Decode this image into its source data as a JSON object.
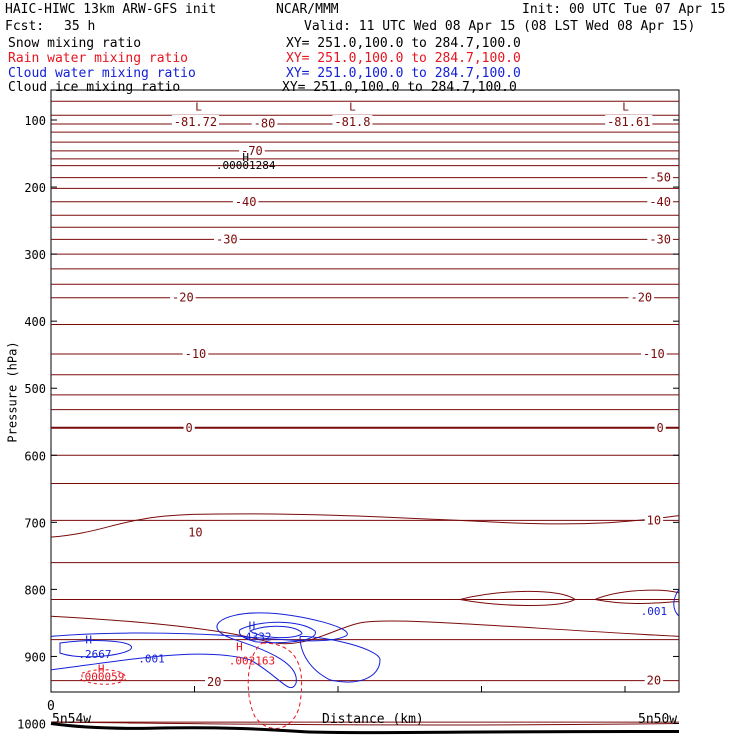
{
  "header": {
    "model": "HAIC-HIWC 13km ARW-GFS init",
    "org": "NCAR/MMM",
    "init": "Init: 00 UTC Tue 07 Apr 15",
    "fcst_label": "Fcst:",
    "fcst_value": "35 h",
    "valid": "Valid: 11 UTC Wed 08 Apr 15 (08 LST Wed 08 Apr 15)"
  },
  "fields": [
    {
      "name": "Snow mixing ratio",
      "xy": "XY= 251.0,100.0 to 284.7,100.0",
      "color": "#000000"
    },
    {
      "name": "Rain water mixing ratio",
      "xy": "XY= 251.0,100.0 to 284.7,100.0",
      "color": "#e8141e"
    },
    {
      "name": "Cloud water mixing ratio",
      "xy": "XY= 251.0,100.0 to 284.7,100.0",
      "color": "#1420d8"
    },
    {
      "name": "Cloud ice mixing ratio",
      "xy": "XY= 251.0,100.0 to 284.7,100.0",
      "color": "#000000"
    }
  ],
  "chart_data": {
    "type": "line",
    "title": "",
    "xlabel": "Distance (km)",
    "ylabel": "Pressure (hPa)",
    "x_start_label": "5n54w",
    "x_end_label": "5n50w",
    "x_zero_label": "0",
    "ylim": [
      1050,
      50
    ],
    "yticks": [
      100,
      200,
      300,
      400,
      500,
      600,
      700,
      800,
      900,
      1000
    ],
    "temperature_contour_labels": [
      {
        "text": "-81.72",
        "x": 0.23,
        "p": 103
      },
      {
        "text": "-80",
        "x": 0.34,
        "p": 105
      },
      {
        "text": "-81.8",
        "x": 0.48,
        "p": 103
      },
      {
        "text": "-81.61",
        "x": 0.92,
        "p": 103
      },
      {
        "text": "-70",
        "x": 0.32,
        "p": 146
      },
      {
        "text": "-50",
        "x": 0.97,
        "p": 186
      },
      {
        "text": "-40",
        "x": 0.31,
        "p": 222
      },
      {
        "text": "-40",
        "x": 0.97,
        "p": 222
      },
      {
        "text": "-30",
        "x": 0.28,
        "p": 278
      },
      {
        "text": "-30",
        "x": 0.97,
        "p": 278
      },
      {
        "text": "-20",
        "x": 0.21,
        "p": 365
      },
      {
        "text": "-20",
        "x": 0.94,
        "p": 365
      },
      {
        "text": "-10",
        "x": 0.23,
        "p": 449
      },
      {
        "text": "-10",
        "x": 0.96,
        "p": 449
      },
      {
        "text": "0",
        "x": 0.22,
        "p": 559
      },
      {
        "text": "0",
        "x": 0.97,
        "p": 559
      },
      {
        "text": "10",
        "x": 0.23,
        "p": 715
      },
      {
        "text": "10",
        "x": 0.96,
        "p": 697
      },
      {
        "text": "20",
        "x": 0.26,
        "p": 938
      },
      {
        "text": "20",
        "x": 0.96,
        "p": 936
      }
    ],
    "extrema": [
      {
        "text": "L",
        "x": 0.235,
        "p": 80,
        "color": "#7a0a0a"
      },
      {
        "text": "L",
        "x": 0.48,
        "p": 80,
        "color": "#7a0a0a"
      },
      {
        "text": "L",
        "x": 0.915,
        "p": 80,
        "color": "#7a0a0a"
      },
      {
        "text": "H",
        "x": 0.31,
        "p": 155,
        "color": "#000000"
      },
      {
        "text": ".00001284",
        "x": 0.31,
        "p": 167,
        "color": "#000000"
      },
      {
        "text": "H",
        "x": 0.06,
        "p": 875,
        "color": "#1420d8"
      },
      {
        "text": ".2667",
        "x": 0.07,
        "p": 896,
        "color": "#1420d8"
      },
      {
        "text": ".001",
        "x": 0.16,
        "p": 903,
        "color": "#1420d8"
      },
      {
        "text": "H",
        "x": 0.08,
        "p": 918,
        "color": "#e8141e"
      },
      {
        "text": ".000059",
        "x": 0.08,
        "p": 930,
        "color": "#e8141e"
      },
      {
        "text": "H",
        "x": 0.32,
        "p": 854,
        "color": "#1420d8"
      },
      {
        "text": "4332",
        "x": 0.33,
        "p": 870,
        "color": "#1420d8"
      },
      {
        "text": "H",
        "x": 0.3,
        "p": 885,
        "color": "#e8141e"
      },
      {
        "text": ".002163",
        "x": 0.32,
        "p": 906,
        "color": "#e8141e"
      },
      {
        "text": ".001",
        "x": 0.96,
        "p": 832,
        "color": "#1420d8"
      }
    ],
    "colors": {
      "temperature": "#7a0a0a",
      "cloud_water": "#1420d8",
      "rain_water": "#e8141e",
      "ground": "#000000"
    }
  }
}
